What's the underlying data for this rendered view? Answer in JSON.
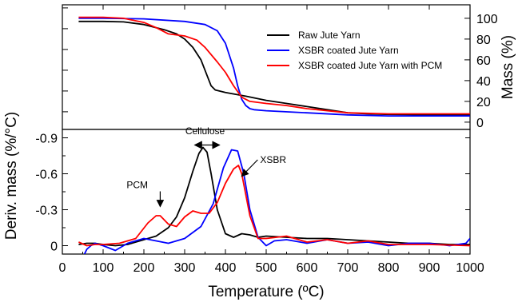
{
  "chart_data": [
    {
      "type": "line",
      "panel": "top",
      "title": "",
      "xlabel": "",
      "ylabel": "Mass (%)",
      "y_axis_side": "right",
      "xlim": [
        0,
        1000
      ],
      "ylim": [
        -7,
        113
      ],
      "yticks": [
        0,
        20,
        40,
        60,
        80,
        100
      ],
      "ytick_labels": [
        "0",
        "20",
        "40",
        "60",
        "80",
        "100"
      ],
      "grid": false,
      "legend_position": "top-right",
      "series": [
        {
          "name": "Raw Jute Yarn",
          "color": "#000000",
          "x": [
            40,
            100,
            150,
            200,
            250,
            280,
            300,
            320,
            340,
            355,
            365,
            375,
            385,
            400,
            450,
            500,
            550,
            600,
            650,
            700,
            750,
            800,
            900,
            1000
          ],
          "y": [
            97,
            97,
            96.5,
            94,
            89,
            85,
            80,
            72,
            60,
            45,
            35,
            31,
            30,
            28.5,
            25,
            21,
            18,
            15,
            12,
            9,
            8,
            7.5,
            7,
            7
          ]
        },
        {
          "name": "XSBR coated Jute Yarn",
          "color": "#0000ff",
          "x": [
            40,
            100,
            200,
            300,
            350,
            380,
            400,
            420,
            430,
            440,
            450,
            460,
            470,
            500,
            600,
            700,
            800,
            900,
            1000
          ],
          "y": [
            100,
            100,
            99.5,
            97,
            94,
            88,
            76,
            52,
            35,
            22,
            16,
            13,
            12,
            11,
            9,
            7,
            6,
            6,
            6
          ]
        },
        {
          "name": "XSBR coated Jute Yarn with PCM",
          "color": "#ff0000",
          "x": [
            40,
            100,
            150,
            200,
            230,
            260,
            300,
            330,
            350,
            380,
            400,
            420,
            440,
            460,
            500,
            550,
            600,
            700,
            800,
            900,
            1000
          ],
          "y": [
            101,
            101,
            100,
            96,
            91,
            85,
            83,
            79,
            72,
            58,
            48,
            35,
            24,
            20,
            18,
            16,
            13,
            9,
            8,
            8,
            8
          ]
        }
      ]
    },
    {
      "type": "line",
      "panel": "bottom",
      "title": "",
      "xlabel": "Temperature (ºC)",
      "ylabel": "Deriv. mass (%/°C)",
      "xlim": [
        0,
        1000
      ],
      "ylim": [
        0.07,
        -0.97
      ],
      "xticks": [
        0,
        100,
        200,
        300,
        400,
        500,
        600,
        700,
        800,
        900,
        1000
      ],
      "xtick_labels": [
        "0",
        "100",
        "200",
        "300",
        "400",
        "500",
        "600",
        "700",
        "800",
        "900",
        "1000"
      ],
      "yticks": [
        -0.9,
        -0.6,
        -0.3,
        0
      ],
      "ytick_labels": [
        "-0.9",
        "-0.6",
        "-0.3",
        "0"
      ],
      "grid": false,
      "annotations": [
        {
          "text": "Cellulose",
          "x": 350,
          "y": -0.93,
          "arrow": "double-horizontal",
          "x_from": 325,
          "x_to": 385,
          "y_arrow": -0.84
        },
        {
          "text": "PCM",
          "x": 240,
          "y": -0.48,
          "arrow_to": [
            240,
            -0.3
          ]
        },
        {
          "text": "XSBR",
          "x": 485,
          "y": -0.69,
          "arrow_to": [
            440,
            -0.58
          ]
        }
      ],
      "series": [
        {
          "name": "Raw Jute Yarn",
          "color": "#000000",
          "x": [
            40,
            60,
            80,
            100,
            130,
            160,
            190,
            210,
            230,
            260,
            280,
            300,
            320,
            335,
            345,
            355,
            365,
            380,
            400,
            420,
            440,
            460,
            480,
            500,
            550,
            600,
            650,
            700,
            750,
            800,
            850,
            900,
            950,
            1000
          ],
          "y": [
            -0.01,
            -0.02,
            -0.02,
            -0.01,
            0,
            -0.01,
            -0.04,
            -0.06,
            -0.08,
            -0.15,
            -0.24,
            -0.4,
            -0.62,
            -0.77,
            -0.82,
            -0.78,
            -0.6,
            -0.3,
            -0.1,
            -0.07,
            -0.1,
            -0.09,
            -0.07,
            -0.08,
            -0.07,
            -0.06,
            -0.06,
            -0.05,
            -0.04,
            -0.03,
            -0.02,
            -0.02,
            -0.01,
            -0.01
          ]
        },
        {
          "name": "XSBR coated Jute Yarn",
          "color": "#0000ff",
          "x": [
            40,
            50,
            60,
            70,
            80,
            100,
            130,
            160,
            200,
            230,
            260,
            300,
            340,
            370,
            395,
            415,
            430,
            445,
            460,
            480,
            500,
            520,
            550,
            600,
            650,
            700,
            750,
            800,
            850,
            900,
            950,
            990,
            1000
          ],
          "y": [
            0.22,
            0.1,
            0.03,
            0.0,
            -0.02,
            0,
            0.04,
            -0.02,
            -0.06,
            -0.04,
            -0.02,
            -0.06,
            -0.16,
            -0.35,
            -0.65,
            -0.8,
            -0.79,
            -0.6,
            -0.3,
            -0.07,
            0,
            -0.04,
            -0.05,
            -0.02,
            -0.05,
            -0.02,
            -0.03,
            0,
            -0.02,
            -0.02,
            0,
            -0.02,
            -0.06
          ]
        },
        {
          "name": "XSBR coated Jute Yarn with PCM",
          "color": "#ff0000",
          "x": [
            40,
            60,
            80,
            100,
            140,
            180,
            210,
            230,
            240,
            260,
            280,
            300,
            320,
            340,
            360,
            380,
            400,
            420,
            432,
            440,
            460,
            480,
            500,
            550,
            600,
            650,
            700,
            750,
            800,
            900,
            1000
          ],
          "y": [
            -0.03,
            0,
            -0.01,
            -0.01,
            -0.02,
            -0.06,
            -0.19,
            -0.25,
            -0.25,
            -0.18,
            -0.16,
            -0.24,
            -0.29,
            -0.27,
            -0.27,
            -0.36,
            -0.52,
            -0.64,
            -0.67,
            -0.6,
            -0.25,
            -0.06,
            -0.06,
            -0.08,
            -0.03,
            -0.05,
            -0.02,
            -0.04,
            -0.01,
            -0.01,
            0
          ]
        }
      ]
    }
  ]
}
